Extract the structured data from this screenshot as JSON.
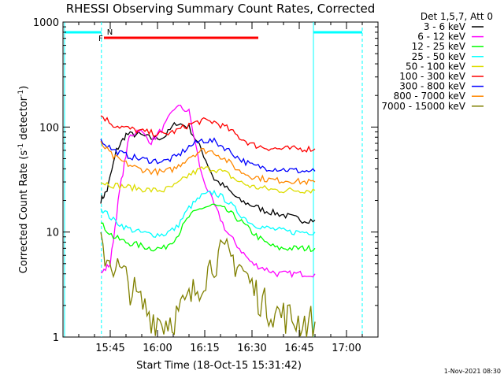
{
  "chart_data": {
    "type": "line",
    "title": "RHESSI Observing Summary Count Rates, Corrected",
    "xlabel": "Start Time (18-Oct-15 15:31:42)",
    "ylabel_main": "Corrected Count Rate (s",
    "ylabel_sup1": "-1",
    "ylabel_mid": " detector",
    "ylabel_sup2": "-1",
    "ylabel_end": ")",
    "yscale": "log",
    "ylim": [
      1,
      1000
    ],
    "xlim_minutes_after_1530": [
      0,
      100
    ],
    "xtick_labels": [
      "15:45",
      "16:00",
      "16:15",
      "16:30",
      "16:45",
      "17:00"
    ],
    "xtick_minutes": [
      15,
      30,
      45,
      60,
      75,
      90
    ],
    "ytick_labels": [
      "1",
      "10",
      "100",
      "1000"
    ],
    "ytick_values": [
      1,
      10,
      100,
      1000
    ],
    "legend_header": "Det 1,5,7, Att 0",
    "legend_position": "top-right",
    "footer_date": "1-Nov-2021 08:30",
    "flag_labels": {
      "flare": "F",
      "night": "N"
    },
    "series": [
      {
        "name": "3 - 6 keV",
        "color": "#000000",
        "x": [
          12,
          14,
          17,
          20,
          24,
          28,
          32,
          36,
          40,
          44,
          48,
          52,
          56,
          60,
          64,
          68,
          72,
          76,
          80
        ],
        "values": [
          20,
          25,
          60,
          85,
          85,
          78,
          80,
          110,
          100,
          60,
          32,
          26,
          20,
          18,
          16,
          15,
          14,
          13,
          13
        ]
      },
      {
        "name": "6 - 12 keV",
        "color": "#ff00ff",
        "x": [
          12,
          15,
          18,
          21,
          24,
          28,
          32,
          36,
          40,
          44,
          48,
          52,
          56,
          60,
          64,
          68,
          72,
          76,
          80
        ],
        "values": [
          4,
          5,
          25,
          80,
          95,
          72,
          100,
          160,
          140,
          35,
          18,
          10,
          7,
          5,
          4.5,
          4,
          4,
          4,
          4
        ]
      },
      {
        "name": "12 - 25 keV",
        "color": "#00ff00",
        "x": [
          12,
          16,
          20,
          24,
          28,
          32,
          36,
          40,
          44,
          48,
          52,
          56,
          60,
          64,
          68,
          72,
          76,
          80
        ],
        "values": [
          12,
          9,
          8,
          7.5,
          7,
          7,
          9,
          14,
          17,
          18,
          16,
          13,
          10,
          8,
          7,
          7,
          7,
          7
        ]
      },
      {
        "name": "25 - 50 keV",
        "color": "#00ffff",
        "x": [
          12,
          16,
          20,
          24,
          28,
          32,
          36,
          40,
          44,
          48,
          52,
          56,
          60,
          64,
          68,
          72,
          76,
          80
        ],
        "values": [
          17,
          13,
          11,
          10,
          9.5,
          9.5,
          11,
          17,
          22,
          24,
          20,
          15,
          12,
          11,
          10.5,
          10,
          10,
          10
        ]
      },
      {
        "name": "50 - 100 keV",
        "color": "#dddd00",
        "x": [
          12,
          16,
          20,
          24,
          28,
          32,
          36,
          40,
          44,
          48,
          52,
          56,
          60,
          64,
          68,
          72,
          76,
          80
        ],
        "values": [
          30,
          28,
          27,
          26,
          25,
          25,
          28,
          35,
          40,
          40,
          36,
          30,
          27,
          26,
          25,
          25,
          25,
          25
        ]
      },
      {
        "name": "100 - 300 keV",
        "color": "#ff0000",
        "x": [
          12,
          16,
          20,
          24,
          28,
          32,
          36,
          40,
          44,
          48,
          52,
          56,
          60,
          64,
          68,
          72,
          76,
          80
        ],
        "values": [
          130,
          105,
          98,
          92,
          88,
          85,
          92,
          105,
          115,
          112,
          98,
          80,
          68,
          64,
          62,
          62,
          62,
          62
        ]
      },
      {
        "name": "300 - 800 keV",
        "color": "#0000ff",
        "x": [
          12,
          16,
          20,
          24,
          28,
          32,
          36,
          40,
          44,
          48,
          52,
          56,
          60,
          64,
          68,
          72,
          76,
          80
        ],
        "values": [
          75,
          60,
          54,
          50,
          48,
          47,
          52,
          65,
          75,
          73,
          62,
          50,
          43,
          41,
          40,
          39,
          38,
          38
        ]
      },
      {
        "name": "800 - 7000 keV",
        "color": "#ff8800",
        "x": [
          12,
          16,
          20,
          24,
          28,
          32,
          36,
          40,
          44,
          48,
          52,
          56,
          60,
          64,
          68,
          72,
          76,
          80
        ],
        "values": [
          70,
          52,
          45,
          40,
          38,
          37,
          41,
          52,
          60,
          58,
          48,
          38,
          34,
          32,
          31,
          31,
          30,
          30
        ]
      },
      {
        "name": "7000 - 15000 keV",
        "color": "#808000",
        "x": [
          12,
          16,
          20,
          24,
          28,
          32,
          36,
          40,
          44,
          48,
          52,
          56,
          60,
          64,
          68,
          72,
          76,
          80
        ],
        "values": [
          7,
          5,
          3.5,
          2.2,
          1.6,
          1.4,
          1.6,
          2.2,
          3.5,
          5.5,
          6,
          5,
          3,
          2,
          1.7,
          1.5,
          1.4,
          1.4
        ]
      }
    ],
    "flare_bar": {
      "x_start": 13,
      "x_end": 62,
      "color": "#ff0000"
    },
    "night_bars": [
      {
        "x_start": 0.5,
        "x_end": 12.2,
        "color": "#00ffff"
      },
      {
        "x_start": 79.5,
        "x_end": 95,
        "color": "#00ffff"
      }
    ],
    "night_lines_dashed": [
      12.2,
      95
    ],
    "night_lines_solid": [
      0.5,
      79.5
    ]
  }
}
